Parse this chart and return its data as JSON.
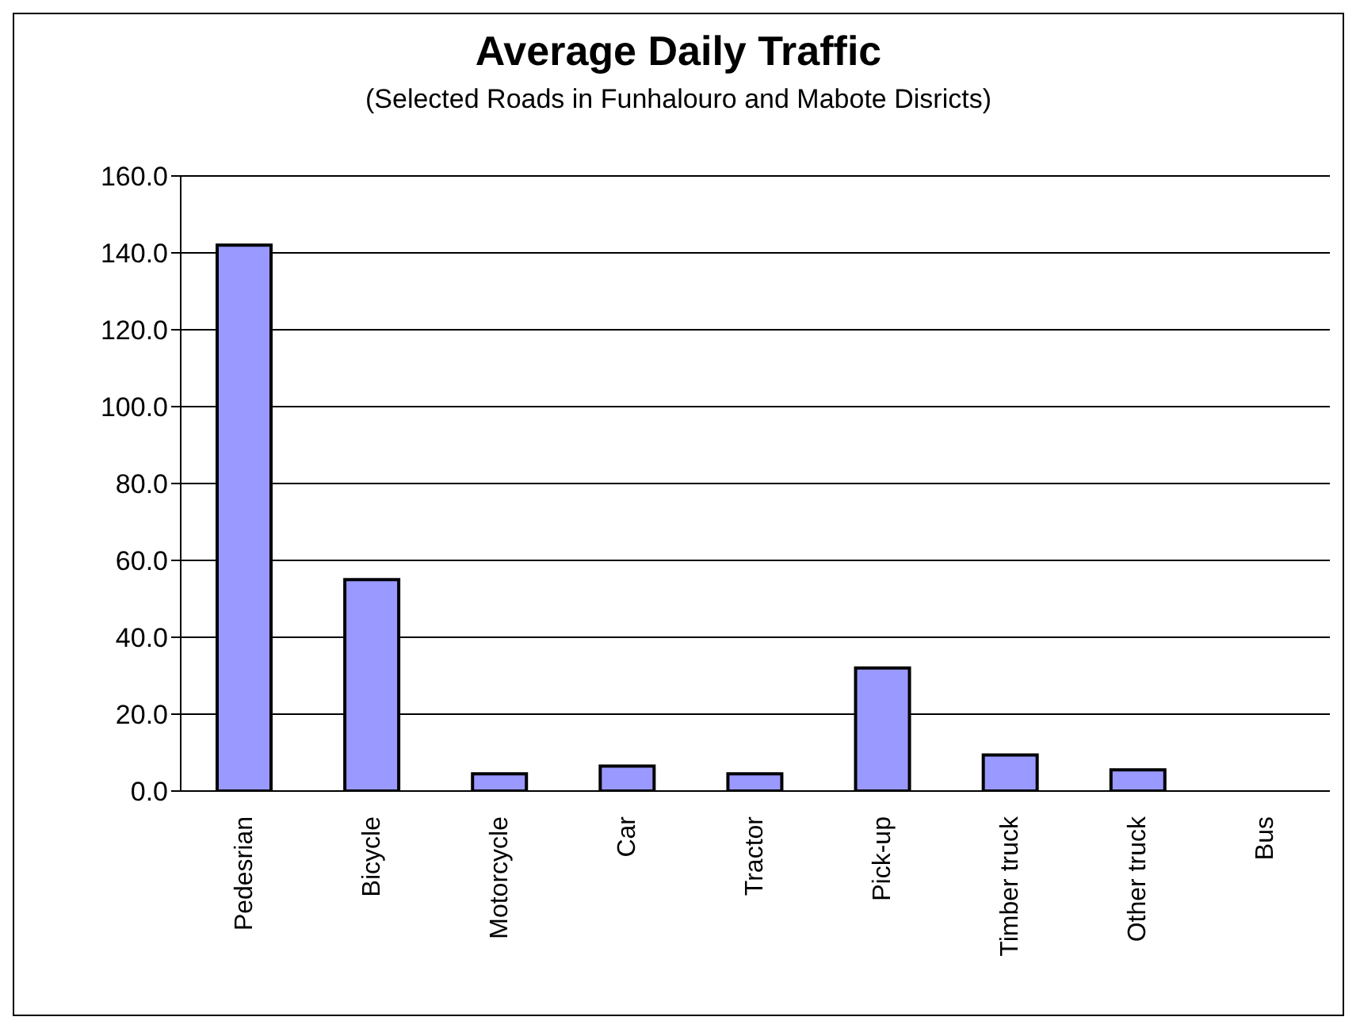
{
  "chart_data": {
    "type": "bar",
    "title": "Average Daily Traffic",
    "subtitle": "(Selected Roads in Funhalouro and Mabote Disricts)",
    "categories": [
      "Pedesrian",
      "Bicycle",
      "Motorcycle",
      "Car",
      "Tractor",
      "Pick-up",
      "Timber truck",
      "Other truck",
      "Bus"
    ],
    "values": [
      142,
      55,
      4.5,
      6.5,
      4.5,
      32,
      9.4,
      5.5,
      0
    ],
    "color": "#9999ff",
    "ylim": [
      0,
      160
    ],
    "yticks": [
      {
        "value": 0,
        "label": "0.0"
      },
      {
        "value": 20,
        "label": "20.0"
      },
      {
        "value": 40,
        "label": "40.0"
      },
      {
        "value": 60,
        "label": "60.0"
      },
      {
        "value": 80,
        "label": "80.0"
      },
      {
        "value": 100,
        "label": "100.0"
      },
      {
        "value": 120,
        "label": "120.0"
      },
      {
        "value": 140,
        "label": "140.0"
      },
      {
        "value": 160,
        "label": "160.0"
      }
    ],
    "grid": "y"
  }
}
